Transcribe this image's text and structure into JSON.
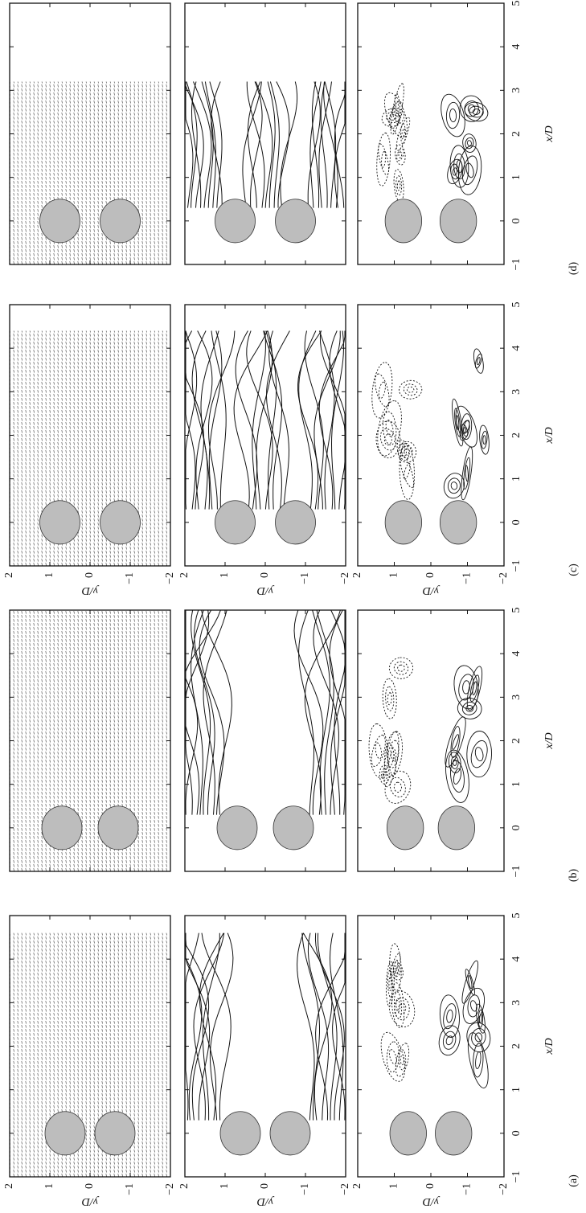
{
  "axes": {
    "x_label": "x/D",
    "y_label": "y/D",
    "xlim": [
      -1,
      5
    ],
    "ylim": [
      -2,
      2
    ],
    "xticks": [
      {
        "value": -1,
        "label": "−1"
      },
      0,
      1,
      2,
      3,
      4,
      5
    ],
    "yticks": [
      2,
      1,
      0,
      {
        "value": -1,
        "label": "−1"
      },
      {
        "value": -2,
        "label": "−2"
      }
    ]
  },
  "panels": [
    {
      "label": "(a)",
      "y_tick_labels": true,
      "x_extent": 4.6,
      "cylinders": [
        {
          "x": 0,
          "y": 0.62
        },
        {
          "x": 0,
          "y": -0.62
        }
      ]
    },
    {
      "label": "(b)",
      "y_tick_labels": false,
      "x_extent": 5,
      "cylinders": [
        {
          "x": 0,
          "y": 0.7
        },
        {
          "x": 0,
          "y": -0.7
        }
      ]
    },
    {
      "label": "(c)",
      "y_tick_labels": true,
      "x_extent": 4.4,
      "cylinders": [
        {
          "x": 0,
          "y": 0.75
        },
        {
          "x": 0,
          "y": -0.75
        }
      ]
    },
    {
      "label": "(d)",
      "y_tick_labels": false,
      "x_extent": 3.2,
      "cylinders": [
        {
          "x": 0,
          "y": 0.75
        },
        {
          "x": 0,
          "y": -0.75
        }
      ]
    }
  ]
}
